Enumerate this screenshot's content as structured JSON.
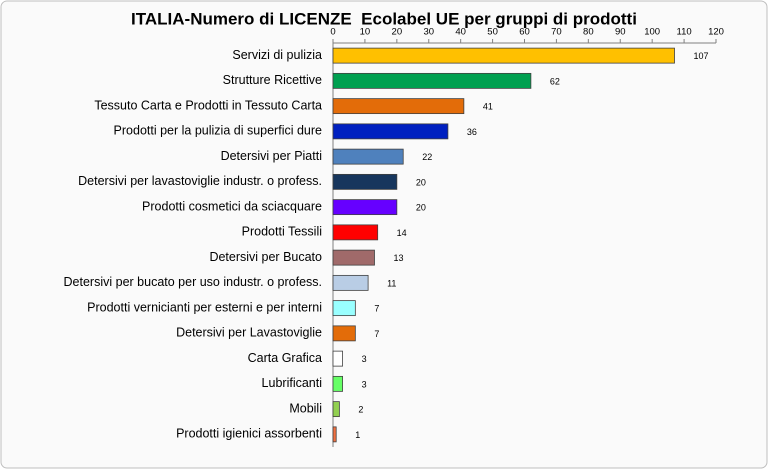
{
  "chart_data": {
    "type": "bar",
    "orientation": "horizontal",
    "title": "ITALIA-Numero di LICENZE  Ecolabel UE per gruppi di prodotti",
    "categories": [
      "Servizi di pulizia",
      "Strutture Ricettive",
      "Tessuto Carta e  Prodotti in Tessuto Carta",
      "Prodotti per la pulizia di superfici dure",
      "Detersivi per Piatti",
      "Detersivi per lavastoviglie industr. o profess.",
      "Prodotti cosmetici da sciacquare",
      "Prodotti Tessili",
      "Detersivi per Bucato",
      "Detersivi per bucato per uso industr. o profess.",
      "Prodotti vernicianti per esterni e per interni",
      "Detersivi per Lavastoviglie",
      "Carta Grafica",
      "Lubrificanti",
      "Mobili",
      "Prodotti igienici assorbenti"
    ],
    "values": [
      107,
      62,
      41,
      36,
      22,
      20,
      20,
      14,
      13,
      11,
      7,
      7,
      3,
      3,
      2,
      1
    ],
    "colors": [
      "#FFC000",
      "#00A050",
      "#E36C09",
      "#0020C0",
      "#4F81BD",
      "#17365D",
      "#6600FF",
      "#FF0000",
      "#A06A6A",
      "#B9CDE5",
      "#99FFFF",
      "#E36C09",
      "#FFFFFF",
      "#66FF66",
      "#92D050",
      "#F07040"
    ],
    "xlim": [
      0,
      120
    ],
    "xticks": [
      0,
      10,
      20,
      30,
      40,
      50,
      60,
      70,
      80,
      90,
      100,
      110,
      120
    ],
    "grid": false
  }
}
